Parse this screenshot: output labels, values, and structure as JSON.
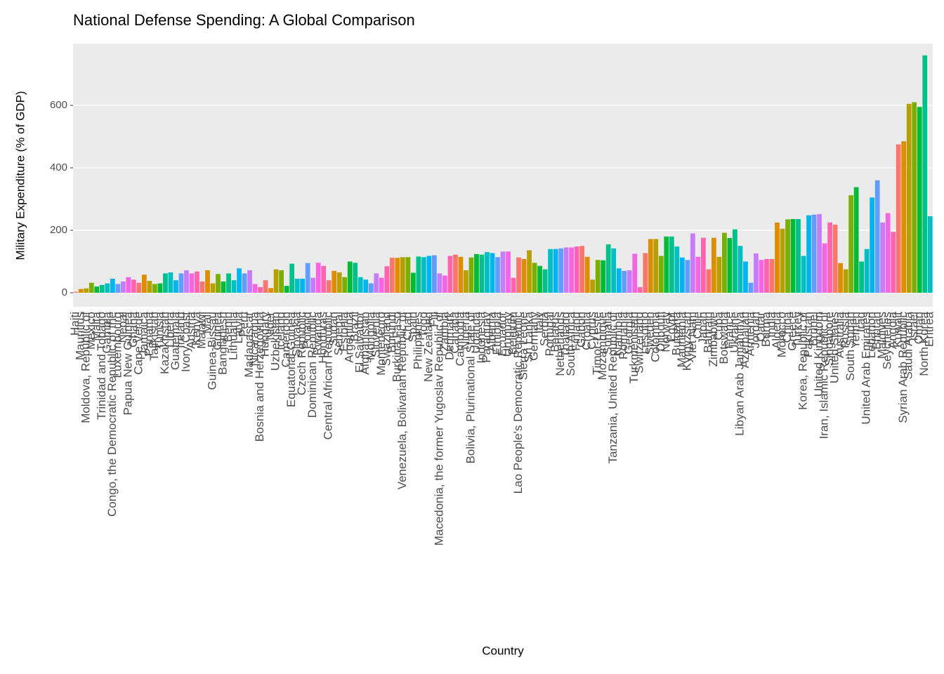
{
  "chart_data": {
    "type": "bar",
    "title": "National Defense Spending: A Global Comparison",
    "x_label": "Country",
    "y_label": "Military Expenditure (% of GDP)",
    "categories": [
      "Haiti",
      "Mauritius",
      "Moldova, Republic of",
      "Mexico",
      "Malta",
      "Trinidad and Tobago",
      "Gambia",
      "Congo, the Democratic Republic of the",
      "Luxembourg",
      "Nepal",
      "Papua New Guinea",
      "Ghana",
      "Cape Verde",
      "Jamaica",
      "Panama",
      "Tajikistan",
      "Tunisia",
      "Kazakhstan",
      "Liberia",
      "Guatemala",
      "Ireland",
      "Ivory Coast",
      "Austria",
      "Kenya",
      "Malawi",
      "Mali",
      "Guinea-Bissau",
      "Guinea",
      "Bangladesh",
      "Benin",
      "Lithuania",
      "Latvia",
      "Peru",
      "Madagascar",
      "Nicaragua",
      "Bosnia and Herzegovina",
      "Hungary",
      "Niger",
      "Uzbekistan",
      "Iceland",
      "Cameroon",
      "Equatorial Guinea",
      "Slovakia",
      "Czech Republic",
      "Poland",
      "Dominican Republic",
      "Rwanda",
      "Honduras",
      "Central African Republic",
      "Sudan",
      "Senegal",
      "Estonia",
      "Argentina",
      "Brazil",
      "El Salvador",
      "Afghanistan",
      "Mongolia",
      "Slovenia",
      "Montenegro",
      "Swaziland",
      "Burundi",
      "Burkina Faso",
      "Venezuela, Bolivarian Republic of",
      "Chad",
      "Spain",
      "Philippines",
      "Togo",
      "New Zealand",
      "Fiji",
      "Macedonia, the former Yugoslav Republic of",
      "Zambia",
      "Denmark",
      "Canada",
      "Cambodia",
      "Nigeria",
      "Bolivia, Plurinational State of",
      "Uganda",
      "Indonesia",
      "Paraguay",
      "Albania",
      "Ethiopia",
      "Ecuador",
      "Uruguay",
      "Belgium",
      "Lao People's Democratic Republic",
      "Sierra Leone",
      "Sri Lanka",
      "Germany",
      "Italy",
      "Serbia",
      "Portugal",
      "Belarus",
      "Netherlands",
      "Thailand",
      "South Africa",
      "Finland",
      "Gabon",
      "Croatia",
      "Cyprus",
      "Timor-Leste",
      "Mozambique",
      "Somalia",
      "Tanzania, United Republic of",
      "Namibia",
      "Romania",
      "Georgia",
      "Turkmenistan",
      "Switzerland",
      "Lesotho",
      "Sweden",
      "Colombia",
      "Djibouti",
      "Norway",
      "Egypt",
      "Bulgaria",
      "Mauritania",
      "Kyrgyzstan",
      "Viet Nam",
      "Chile",
      "Japan",
      "Bahrain",
      "Zimbabwe",
      "Cuba",
      "Botswana",
      "France",
      "Ukraine",
      "Libyan Arab Jamahiriya",
      "Azerbaijan",
      "Armenia",
      "Jordan",
      "Qatar",
      "Burma",
      "India",
      "Algeria",
      "Morocco",
      "China",
      "Greece",
      "Turkey",
      "Korea, Republic of",
      "Pakistan",
      "Brunei",
      "United Kingdom",
      "Iran, Islamic Republic of",
      "Singapore",
      "United States",
      "Australia",
      "Russia",
      "South Sudan",
      "Yemen",
      "Iraq",
      "United Arab Emirates",
      "Lebanon",
      "Bhutan",
      "Maldives",
      "Seychelles",
      "Angola",
      "Kuwait",
      "Syrian Arab Republic",
      "Saudi Arabia",
      "Israel",
      "Oman",
      "North Korea",
      "Eritrea"
    ],
    "values": [
      3,
      12,
      14,
      32,
      20,
      25,
      30,
      45,
      28,
      36,
      50,
      42,
      32,
      58,
      38,
      28,
      30,
      62,
      65,
      40,
      62,
      72,
      62,
      68,
      36,
      72,
      30,
      60,
      36,
      62,
      40,
      78,
      62,
      72,
      28,
      18,
      40,
      15,
      75,
      72,
      22,
      93,
      45,
      45,
      95,
      48,
      96,
      86,
      40,
      70,
      65,
      50,
      100,
      96,
      50,
      42,
      30,
      62,
      48,
      85,
      112,
      112,
      114,
      114,
      64,
      116,
      114,
      118,
      120,
      62,
      55,
      118,
      122,
      115,
      72,
      113,
      124,
      122,
      130,
      127,
      114,
      132,
      132,
      48,
      113,
      108,
      136,
      96,
      86,
      75,
      140,
      140,
      142,
      145,
      145,
      148,
      150,
      115,
      42,
      105,
      104,
      155,
      142,
      78,
      70,
      72,
      125,
      18,
      127,
      172,
      172,
      118,
      180,
      180,
      148,
      113,
      105,
      190,
      115,
      176,
      75,
      176,
      115,
      192,
      175,
      203,
      150,
      100,
      32,
      126,
      105,
      108,
      108,
      225,
      205,
      235,
      236,
      236,
      118,
      248,
      250,
      252,
      158,
      225,
      218,
      95,
      75,
      312,
      338,
      100,
      140,
      305,
      360,
      225,
      255,
      195,
      475,
      485,
      605,
      610,
      595,
      760,
      245
    ],
    "palette": [
      "#F8766D",
      "#DE8C00",
      "#B79F00",
      "#7CAE00",
      "#00BA38",
      "#00C08B",
      "#00BFC4",
      "#00B4F0",
      "#619CFF",
      "#C77CFF",
      "#F564E3",
      "#FF64B0"
    ],
    "ylim": [
      -45,
      798
    ],
    "yticks": [
      0,
      200,
      400,
      600
    ],
    "grid": true
  }
}
